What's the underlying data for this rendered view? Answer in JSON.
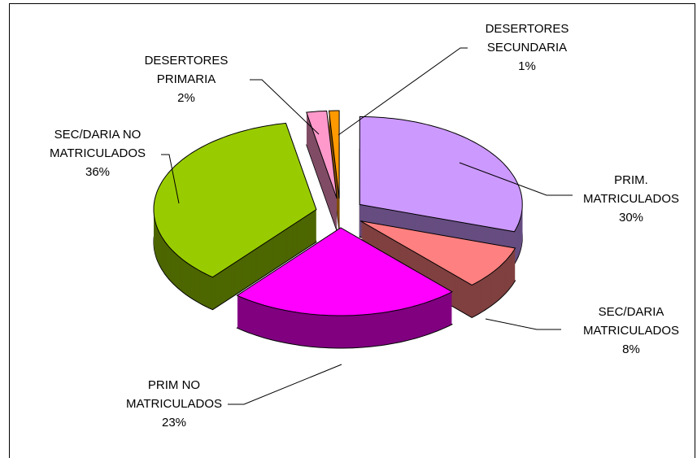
{
  "chart_data": {
    "type": "pie",
    "categories": [
      "PRIM. MATRICULADOS",
      "SEC/DARIA MATRICULADOS",
      "PRIM NO MATRICULADOS",
      "SEC/DARIA NO MATRICULADOS",
      "DESERTORES PRIMARIA",
      "DESERTORES SECUNDARIA"
    ],
    "values": [
      30,
      8,
      23,
      36,
      2,
      1
    ],
    "value_labels": [
      "30%",
      "8%",
      "23%",
      "36%",
      "2%",
      "1%"
    ],
    "colors": [
      "#cc99ff",
      "#ff8080",
      "#ff00ff",
      "#99cc00",
      "#ff99cc",
      "#ff9900"
    ]
  }
}
